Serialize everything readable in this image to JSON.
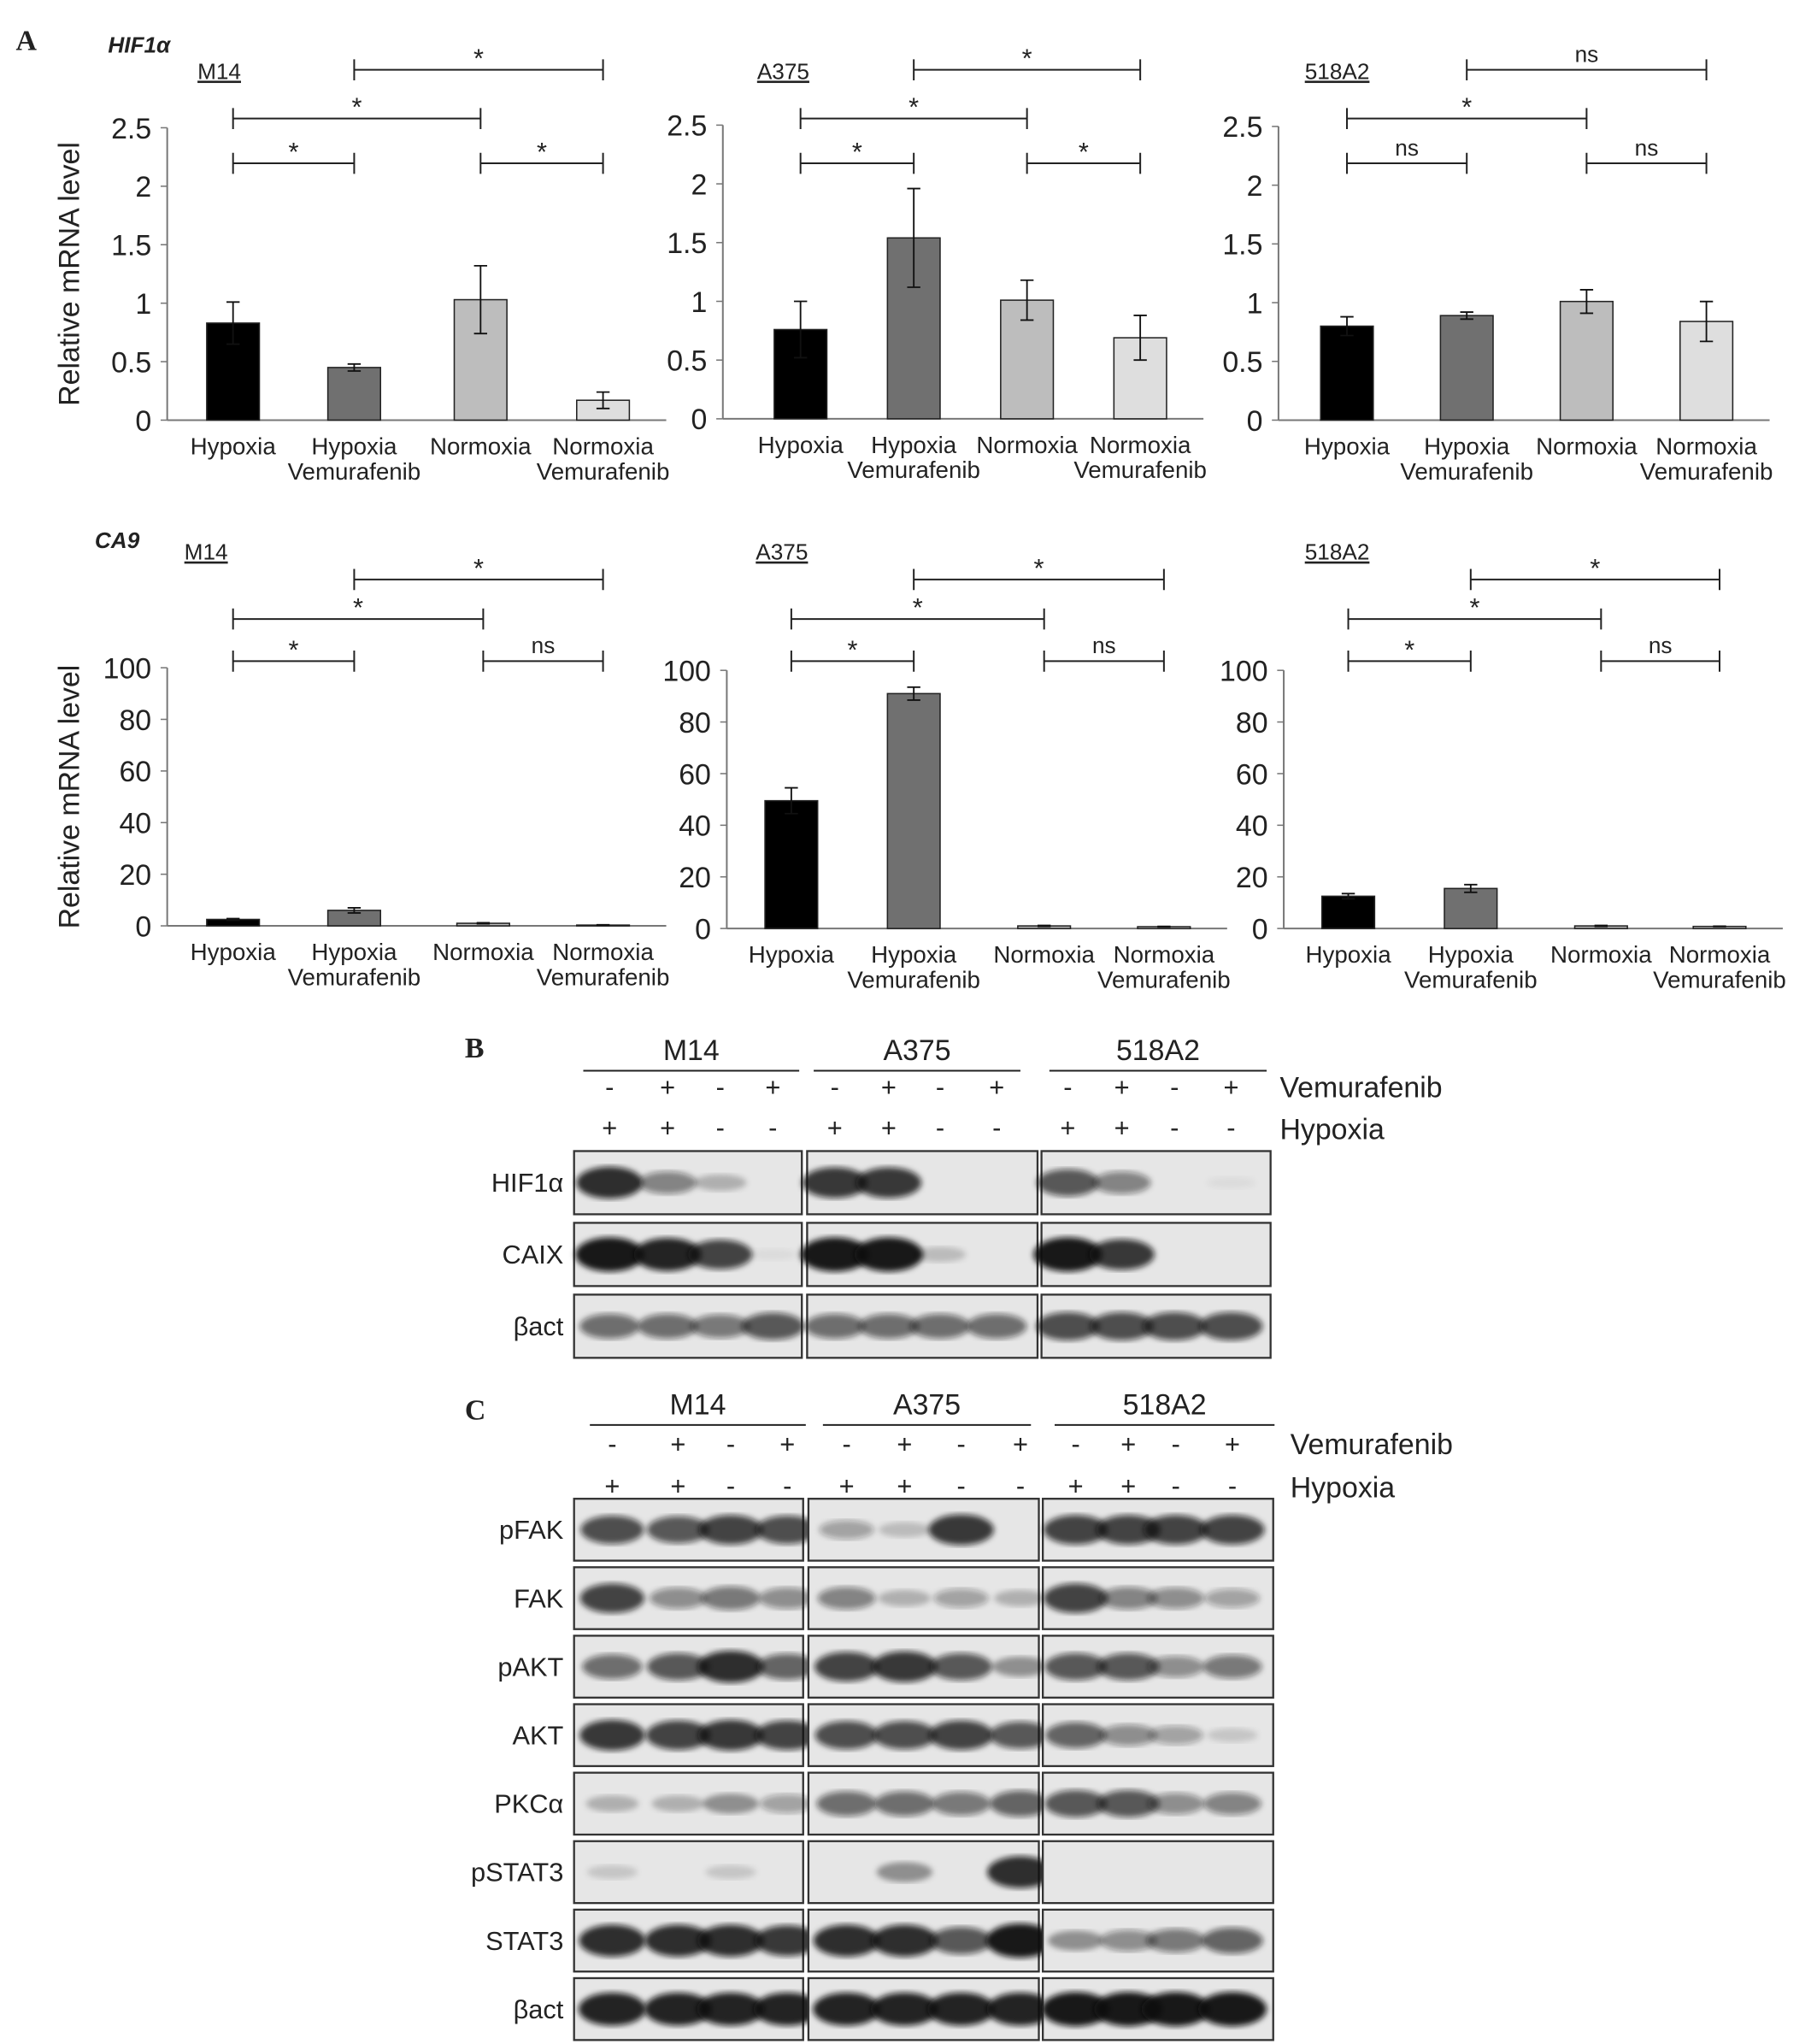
{
  "panel_labels": {
    "a": "A",
    "b": "B",
    "c": "C"
  },
  "chart_data": [
    {
      "type": "bar",
      "gene": "HIF1α",
      "cell_line": "M14",
      "ylabel": "Relative mRNA level",
      "ylim": [
        0,
        2.5
      ],
      "yticks": [
        "0",
        "0.5",
        "1",
        "1.5",
        "2",
        "2.5"
      ],
      "categories": [
        "Hypoxia",
        "Hypoxia\nVemurafenib",
        "Normoxia",
        "Normoxia\nVemurafenib"
      ],
      "values": [
        0.83,
        0.45,
        1.03,
        0.17
      ],
      "errors": [
        0.18,
        0.03,
        0.29,
        0.07
      ],
      "significance": [
        {
          "pair": [
            2,
            4
          ],
          "label": "*"
        },
        {
          "pair": [
            1,
            3
          ],
          "label": "*"
        },
        {
          "pair": [
            1,
            2
          ],
          "label": "*"
        },
        {
          "pair": [
            3,
            4
          ],
          "label": "*"
        }
      ]
    },
    {
      "type": "bar",
      "gene": "",
      "cell_line": "A375",
      "ylabel": "",
      "ylim": [
        0,
        2.5
      ],
      "yticks": [
        "0",
        "0.5",
        "1",
        "1.5",
        "2",
        "2.5"
      ],
      "categories": [
        "Hypoxia",
        "Hypoxia\nVemurafenib",
        "Normoxia",
        "Normoxia\nVemurafenib"
      ],
      "values": [
        0.76,
        1.54,
        1.01,
        0.69
      ],
      "errors": [
        0.24,
        0.42,
        0.17,
        0.19
      ],
      "significance": [
        {
          "pair": [
            2,
            4
          ],
          "label": "*"
        },
        {
          "pair": [
            1,
            3
          ],
          "label": "*"
        },
        {
          "pair": [
            1,
            2
          ],
          "label": "*"
        },
        {
          "pair": [
            3,
            4
          ],
          "label": "*"
        }
      ]
    },
    {
      "type": "bar",
      "gene": "",
      "cell_line": "518A2",
      "ylabel": "",
      "ylim": [
        0,
        2.5
      ],
      "yticks": [
        "0",
        "0.5",
        "1",
        "1.5",
        "2",
        "2.5"
      ],
      "categories": [
        "Hypoxia",
        "Hypoxia\nVemurafenib",
        "Normoxia",
        "Normoxia\nVemurafenib"
      ],
      "values": [
        0.8,
        0.89,
        1.01,
        0.84
      ],
      "errors": [
        0.08,
        0.03,
        0.1,
        0.17
      ],
      "significance": [
        {
          "pair": [
            2,
            4
          ],
          "label": "ns"
        },
        {
          "pair": [
            1,
            3
          ],
          "label": "*"
        },
        {
          "pair": [
            1,
            2
          ],
          "label": "ns"
        },
        {
          "pair": [
            3,
            4
          ],
          "label": "ns"
        }
      ]
    },
    {
      "type": "bar",
      "gene": "CA9",
      "cell_line": "M14",
      "ylabel": "Relative mRNA level",
      "ylim": [
        0,
        100
      ],
      "yticks": [
        "0",
        "20",
        "40",
        "60",
        "80",
        "100"
      ],
      "categories": [
        "Hypoxia",
        "Hypoxia\nVemurafenib",
        "Normoxia",
        "Normoxia\nVemurafenib"
      ],
      "values": [
        2.5,
        6,
        1,
        0.3
      ],
      "errors": [
        0.3,
        1,
        0.2,
        0.1
      ],
      "significance": [
        {
          "pair": [
            2,
            4
          ],
          "label": "*"
        },
        {
          "pair": [
            1,
            3
          ],
          "label": "*"
        },
        {
          "pair": [
            1,
            2
          ],
          "label": "*"
        },
        {
          "pair": [
            3,
            4
          ],
          "label": "ns"
        }
      ]
    },
    {
      "type": "bar",
      "gene": "",
      "cell_line": "A375",
      "ylabel": "",
      "ylim": [
        0,
        100
      ],
      "yticks": [
        "0",
        "20",
        "40",
        "60",
        "80",
        "100"
      ],
      "categories": [
        "Hypoxia",
        "Hypoxia\nVemurafenib",
        "Normoxia",
        "Normoxia\nVemurafenib"
      ],
      "values": [
        49.5,
        91,
        1,
        0.7
      ],
      "errors": [
        5,
        2.5,
        0.2,
        0.1
      ],
      "significance": [
        {
          "pair": [
            2,
            4
          ],
          "label": "*"
        },
        {
          "pair": [
            1,
            3
          ],
          "label": "*"
        },
        {
          "pair": [
            1,
            2
          ],
          "label": "*"
        },
        {
          "pair": [
            3,
            4
          ],
          "label": "ns"
        }
      ]
    },
    {
      "type": "bar",
      "gene": "",
      "cell_line": "518A2",
      "ylabel": "",
      "ylim": [
        0,
        100
      ],
      "yticks": [
        "0",
        "20",
        "40",
        "60",
        "80",
        "100"
      ],
      "categories": [
        "Hypoxia",
        "Hypoxia\nVemurafenib",
        "Normoxia",
        "Normoxia\nVemurafenib"
      ],
      "values": [
        12.5,
        15.5,
        1,
        0.8
      ],
      "errors": [
        1,
        1.5,
        0.2,
        0.1
      ],
      "significance": [
        {
          "pair": [
            2,
            4
          ],
          "label": "*"
        },
        {
          "pair": [
            1,
            3
          ],
          "label": "*"
        },
        {
          "pair": [
            1,
            2
          ],
          "label": "*"
        },
        {
          "pair": [
            3,
            4
          ],
          "label": "ns"
        }
      ]
    }
  ],
  "bar_colors": [
    "#000000",
    "#707070",
    "#bdbdbd",
    "#dedede"
  ],
  "blots": {
    "cell_lines": [
      "M14",
      "A375",
      "518A2"
    ],
    "treatment_labels": {
      "vemurafenib": "Vemurafenib",
      "hypoxia": "Hypoxia"
    },
    "vemurafenib_signs": [
      "-",
      "+",
      "-",
      "+"
    ],
    "hypoxia_signs": [
      "+",
      "+",
      "-",
      "-"
    ],
    "panel_b": [
      {
        "label": "HIF1α",
        "intensity": [
          [
            0.9,
            0.5,
            0.25,
            0
          ],
          [
            0.85,
            0.85,
            0,
            0
          ],
          [
            0.7,
            0.5,
            0,
            0.05
          ]
        ]
      },
      {
        "label": "CAIX",
        "intensity": [
          [
            1,
            0.95,
            0.8,
            0.05
          ],
          [
            1,
            1,
            0.2,
            0
          ],
          [
            1,
            0.85,
            0,
            0
          ]
        ]
      },
      {
        "label": "βact",
        "intensity": [
          [
            0.6,
            0.6,
            0.55,
            0.7
          ],
          [
            0.6,
            0.6,
            0.6,
            0.6
          ],
          [
            0.75,
            0.75,
            0.75,
            0.75
          ]
        ]
      }
    ],
    "panel_c": [
      {
        "label": "pFAK",
        "intensity": [
          [
            0.75,
            0.7,
            0.8,
            0.75
          ],
          [
            0.35,
            0.2,
            0.85,
            0
          ],
          [
            0.8,
            0.8,
            0.8,
            0.8
          ]
        ]
      },
      {
        "label": "FAK",
        "intensity": [
          [
            0.8,
            0.45,
            0.55,
            0.45
          ],
          [
            0.5,
            0.25,
            0.35,
            0.25
          ],
          [
            0.8,
            0.5,
            0.45,
            0.35
          ]
        ]
      },
      {
        "label": "pAKT",
        "intensity": [
          [
            0.6,
            0.7,
            0.9,
            0.65
          ],
          [
            0.8,
            0.85,
            0.7,
            0.4
          ],
          [
            0.7,
            0.7,
            0.45,
            0.55
          ]
        ]
      },
      {
        "label": "AKT",
        "intensity": [
          [
            0.85,
            0.8,
            0.85,
            0.8
          ],
          [
            0.75,
            0.75,
            0.8,
            0.7
          ],
          [
            0.65,
            0.45,
            0.35,
            0.15
          ]
        ]
      },
      {
        "label": "PKCα",
        "intensity": [
          [
            0.25,
            0.25,
            0.4,
            0.35
          ],
          [
            0.6,
            0.6,
            0.55,
            0.65
          ],
          [
            0.7,
            0.7,
            0.45,
            0.5
          ]
        ]
      },
      {
        "label": "pSTAT3",
        "intensity": [
          [
            0.15,
            0,
            0.15,
            0
          ],
          [
            0,
            0.4,
            0,
            0.9
          ],
          [
            0,
            0,
            0,
            0
          ]
        ]
      },
      {
        "label": "STAT3",
        "intensity": [
          [
            0.9,
            0.9,
            0.9,
            0.85
          ],
          [
            0.9,
            0.9,
            0.7,
            1
          ],
          [
            0.4,
            0.45,
            0.55,
            0.65
          ]
        ]
      },
      {
        "label": "βact",
        "intensity": [
          [
            0.95,
            0.95,
            0.95,
            0.95
          ],
          [
            0.95,
            0.95,
            0.95,
            0.95
          ],
          [
            1,
            1,
            1,
            1
          ]
        ]
      }
    ]
  }
}
